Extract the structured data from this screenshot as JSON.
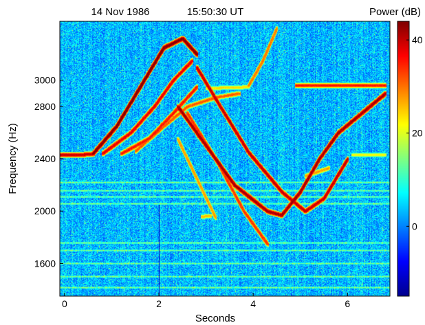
{
  "chart_data": {
    "type": "heatmap",
    "title_date": "14 Nov 1986",
    "title_time": "15:50:30 UT",
    "xlabel": "Seconds",
    "ylabel": "Frequency (Hz)",
    "colorbar_label": "Power (dB)",
    "xlim": [
      -0.1,
      6.9
    ],
    "ylim": [
      1350,
      3450
    ],
    "x_ticks": [
      0,
      2,
      4,
      6
    ],
    "y_ticks": [
      1600,
      2000,
      2400,
      2800,
      3000
    ],
    "colorbar_range": [
      -15,
      44
    ],
    "colorbar_ticks": [
      0,
      20,
      40
    ],
    "colormap": [
      "#00008f",
      "#0000ff",
      "#0080ff",
      "#00ffff",
      "#80ff80",
      "#ffff00",
      "#ff8000",
      "#ff0000",
      "#800000"
    ],
    "background_power_db": 3,
    "constant_tones_hz": [
      1420,
      1500,
      1600,
      1700,
      1760,
      2060,
      2110,
      2160,
      2220
    ],
    "emissions": [
      {
        "name": "initial-tone",
        "points": [
          [
            -0.1,
            2430
          ],
          [
            0.3,
            2430
          ],
          [
            0.6,
            2440
          ]
        ],
        "power_db": 38
      },
      {
        "name": "riser-1",
        "points": [
          [
            0.6,
            2440
          ],
          [
            1.1,
            2650
          ],
          [
            1.6,
            2950
          ],
          [
            2.1,
            3250
          ],
          [
            2.5,
            3320
          ],
          [
            2.8,
            3200
          ]
        ],
        "power_db": 42
      },
      {
        "name": "riser-2",
        "points": [
          [
            0.8,
            2440
          ],
          [
            1.4,
            2600
          ],
          [
            1.9,
            2800
          ],
          [
            2.3,
            3000
          ],
          [
            2.7,
            3150
          ]
        ],
        "power_db": 36
      },
      {
        "name": "riser-3",
        "points": [
          [
            1.2,
            2440
          ],
          [
            1.8,
            2560
          ],
          [
            2.3,
            2750
          ],
          [
            2.8,
            2950
          ]
        ],
        "power_db": 34
      },
      {
        "name": "riser-4",
        "points": [
          [
            1.5,
            2460
          ],
          [
            2.1,
            2650
          ],
          [
            2.6,
            2800
          ],
          [
            3.2,
            2870
          ],
          [
            3.7,
            2900
          ]
        ],
        "power_db": 30
      },
      {
        "name": "falling-tone",
        "points": [
          [
            2.4,
            2800
          ],
          [
            3.0,
            2500
          ],
          [
            3.6,
            2200
          ],
          [
            4.3,
            2000
          ],
          [
            4.6,
            1970
          ],
          [
            5.0,
            2150
          ],
          [
            5.4,
            2400
          ],
          [
            5.8,
            2600
          ],
          [
            6.3,
            2750
          ],
          [
            6.8,
            2900
          ]
        ],
        "power_db": 40
      },
      {
        "name": "hook",
        "points": [
          [
            2.8,
            3100
          ],
          [
            3.3,
            2800
          ],
          [
            3.9,
            2450
          ],
          [
            4.6,
            2150
          ],
          [
            5.1,
            2000
          ],
          [
            5.5,
            2100
          ],
          [
            6.0,
            2400
          ]
        ],
        "power_db": 38
      },
      {
        "name": "steep-faller-1",
        "points": [
          [
            2.6,
            2750
          ],
          [
            3.2,
            2400
          ],
          [
            3.8,
            2000
          ],
          [
            4.3,
            1750
          ]
        ],
        "power_db": 32
      },
      {
        "name": "steep-faller-2",
        "points": [
          [
            2.4,
            2550
          ],
          [
            2.8,
            2250
          ],
          [
            3.2,
            1950
          ]
        ],
        "power_db": 26
      },
      {
        "name": "flat-band-2950",
        "points": [
          [
            4.9,
            2960
          ],
          [
            6.8,
            2960
          ]
        ],
        "power_db": 34
      },
      {
        "name": "late-riser",
        "points": [
          [
            3.9,
            2960
          ],
          [
            4.2,
            3150
          ],
          [
            4.5,
            3400
          ]
        ],
        "power_db": 28
      },
      {
        "name": "band-2940",
        "points": [
          [
            3.0,
            2940
          ],
          [
            3.9,
            2950
          ]
        ],
        "power_db": 22
      },
      {
        "name": "patch-2270",
        "points": [
          [
            5.1,
            2270
          ],
          [
            5.6,
            2330
          ]
        ],
        "power_db": 26
      },
      {
        "name": "patch-1960",
        "points": [
          [
            2.9,
            1960
          ],
          [
            3.1,
            1965
          ]
        ],
        "power_db": 24
      },
      {
        "name": "patch-2430",
        "points": [
          [
            6.1,
            2430
          ],
          [
            6.8,
            2430
          ]
        ],
        "power_db": 20
      }
    ]
  }
}
